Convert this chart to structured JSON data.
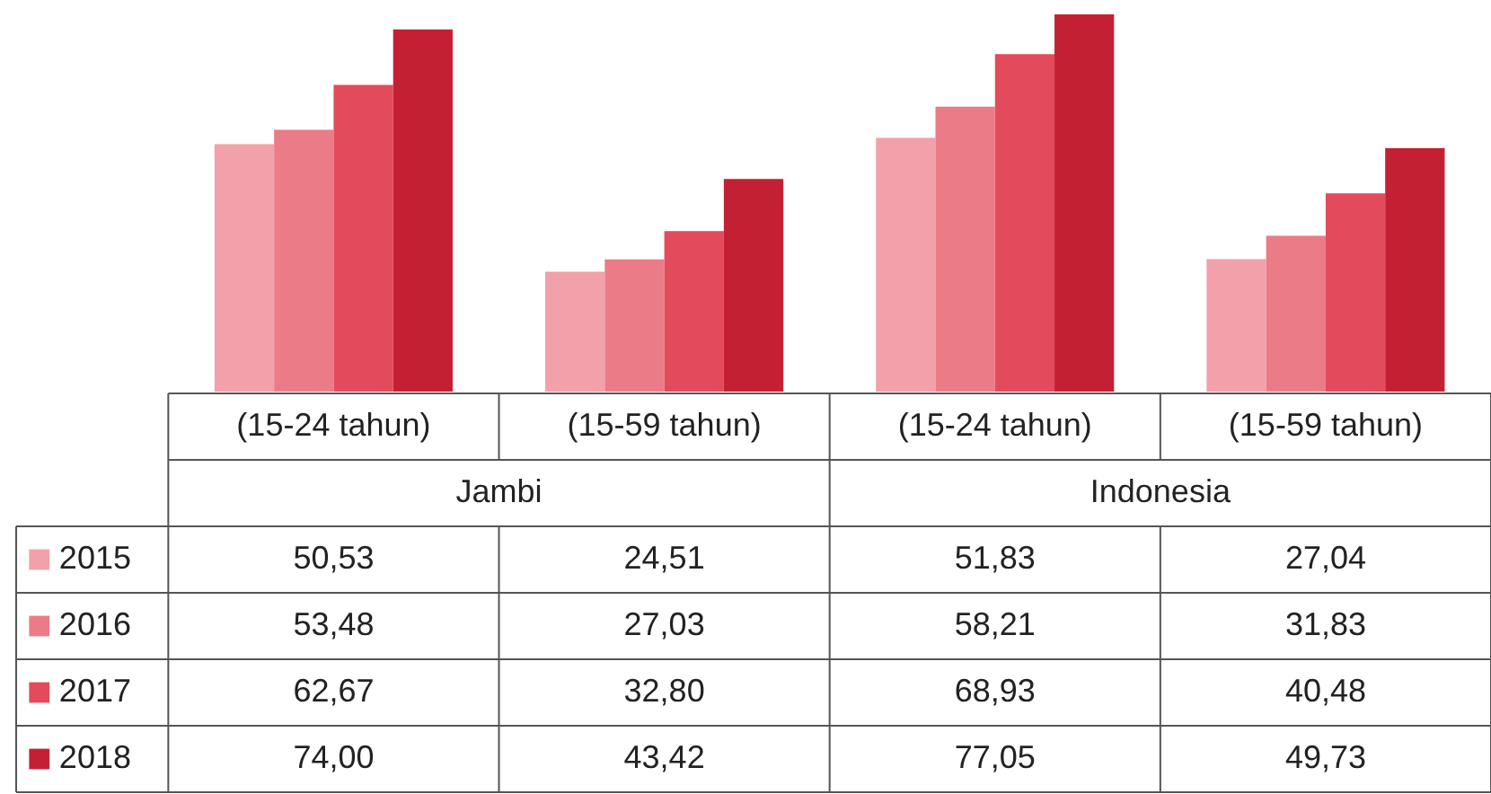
{
  "chart_data": {
    "type": "bar",
    "categories": [
      "(15-24 tahun)",
      "(15-59 tahun)",
      "(15-24 tahun)",
      "(15-59 tahun)"
    ],
    "annotations": [
      "Jambi",
      "Indonesia"
    ],
    "legend": "left",
    "series": [
      {
        "name": "2015",
        "color": "#f2a0aa",
        "values": [
          50.53,
          24.51,
          51.83,
          27.04
        ],
        "value_labels": [
          "50,53",
          "24,51",
          "51,83",
          "27,04"
        ]
      },
      {
        "name": "2016",
        "color": "#ec7b88",
        "values": [
          53.48,
          27.03,
          58.21,
          31.83
        ],
        "value_labels": [
          "53,48",
          "27,03",
          "58,21",
          "31,83"
        ]
      },
      {
        "name": "2017",
        "color": "#e34b5d",
        "values": [
          62.67,
          32.8,
          68.93,
          40.48
        ],
        "value_labels": [
          "62,67",
          "32,80",
          "68,93",
          "40,48"
        ]
      },
      {
        "name": "2018",
        "color": "#c42034",
        "values": [
          74.0,
          43.42,
          77.05,
          49.73
        ],
        "value_labels": [
          "74,00",
          "43,42",
          "77,05",
          "49,73"
        ]
      }
    ]
  }
}
